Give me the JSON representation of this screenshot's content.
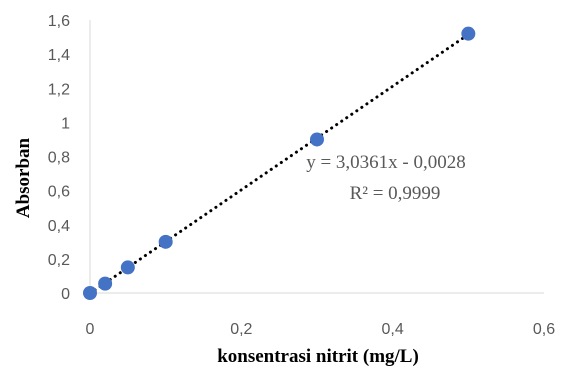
{
  "chart_data": {
    "type": "scatter",
    "xlabel": "konsentrasi nitrit (mg/L)",
    "ylabel": "Absorban",
    "xlim": [
      0,
      0.6
    ],
    "ylim": [
      0,
      1.6
    ],
    "x_ticks": [
      "0",
      "0,2",
      "0,4",
      "0,6"
    ],
    "y_ticks": [
      "0",
      "0,2",
      "0,4",
      "0,6",
      "0,8",
      "1",
      "1,2",
      "1,4",
      "1,6"
    ],
    "grid": false,
    "series": [
      {
        "x": [
          0,
          0.02,
          0.05,
          0.1,
          0.3,
          0.5
        ],
        "y": [
          0,
          0.055,
          0.15,
          0.3,
          0.9,
          1.52
        ]
      }
    ],
    "trendline": {
      "type": "linear",
      "slope": 3.0361,
      "intercept": -0.0028,
      "equation": "y = 3,0361x - 0,0028",
      "r_squared": "R² = 0,9999"
    },
    "colors": {
      "marker": "#4472C4",
      "trendline": "#000000",
      "axis": "#d9d9d9"
    }
  }
}
